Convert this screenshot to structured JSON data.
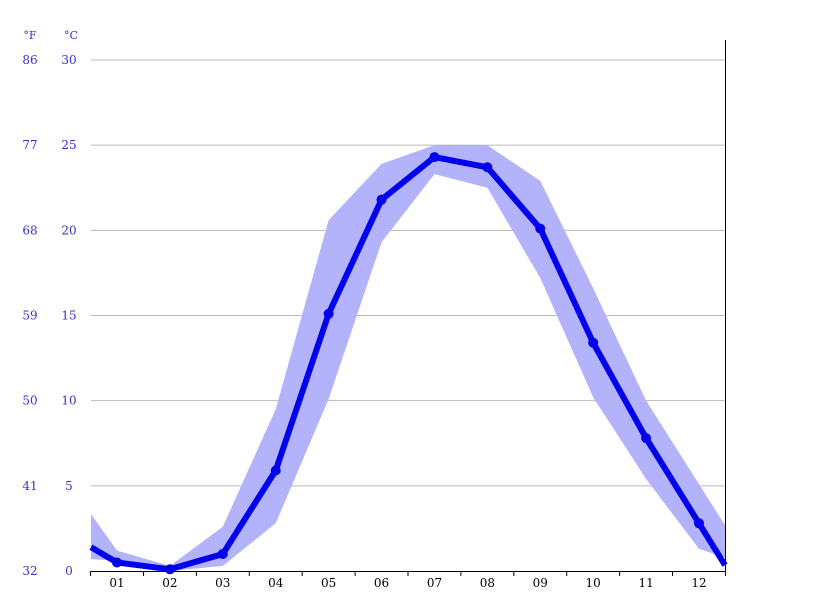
{
  "chart_data": {
    "type": "line",
    "title": "",
    "xlabel": "",
    "ylabel": "",
    "units": {
      "fahrenheit": "°F",
      "celsius": "°C"
    },
    "colors": {
      "line": "#0000ee",
      "band": "#b3b3fb",
      "axis_text": "#3333cc",
      "grid": "#bbbbbb"
    },
    "ylim": [
      0,
      30
    ],
    "y_ticks": [
      {
        "c": 30,
        "c_label": "30",
        "f_label": "86"
      },
      {
        "c": 25,
        "c_label": "25",
        "f_label": "77"
      },
      {
        "c": 20,
        "c_label": "20",
        "f_label": "68"
      },
      {
        "c": 15,
        "c_label": "15",
        "f_label": "59"
      },
      {
        "c": 10,
        "c_label": "10",
        "f_label": "50"
      },
      {
        "c": 5,
        "c_label": "5",
        "f_label": "41"
      },
      {
        "c": 0,
        "c_label": "0",
        "f_label": "32"
      }
    ],
    "categories": [
      "01",
      "02",
      "03",
      "04",
      "05",
      "06",
      "07",
      "08",
      "09",
      "10",
      "11",
      "12"
    ],
    "series": [
      {
        "values": [
          0.5,
          0.1,
          1.0,
          5.9,
          15.1,
          21.8,
          24.3,
          23.7,
          20.1,
          13.4,
          7.8,
          2.8
        ]
      }
    ],
    "band": {
      "upper": [
        1.2,
        0.3,
        2.6,
        9.5,
        20.6,
        23.9,
        25.0,
        25.0,
        22.9,
        16.6,
        10.0,
        5.1
      ],
      "lower": [
        0.6,
        0.0,
        0.3,
        2.8,
        10.1,
        19.3,
        23.3,
        22.5,
        17.2,
        10.2,
        5.4,
        1.3
      ]
    }
  }
}
